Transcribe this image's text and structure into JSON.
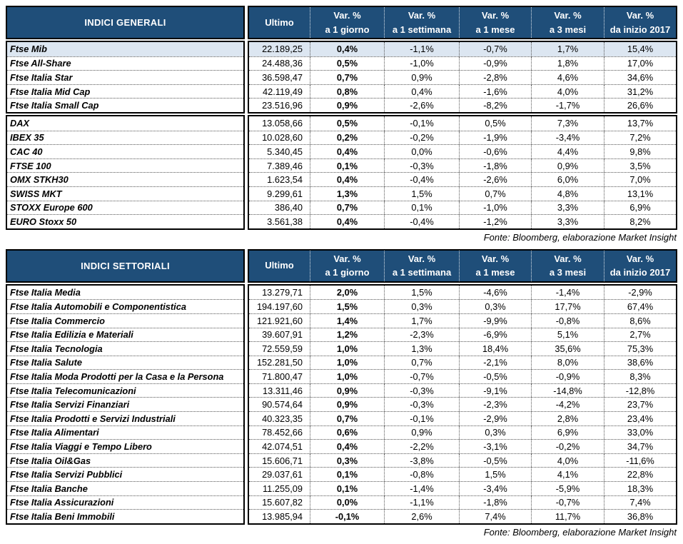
{
  "page": {
    "source_note": "Fonte: Bloomberg, elaborazione Market Insight"
  },
  "colors": {
    "header_bg": "#1F4E79",
    "header_text": "#FFFFFF",
    "highlight_row_bg": "#DCE6F1",
    "border": "#000000"
  },
  "columns": {
    "ultimo": "Ultimo",
    "var": [
      {
        "line1": "Var. %",
        "line2": "a 1 giorno"
      },
      {
        "line1": "Var. %",
        "line2": "a 1 settimana"
      },
      {
        "line1": "Var. %",
        "line2": "a 1 mese"
      },
      {
        "line1": "Var. %",
        "line2": "a 3 mesi"
      },
      {
        "line1": "Var. %",
        "line2": "da inizio 2017"
      }
    ]
  },
  "tables": [
    {
      "title": "INDICI GENERALI",
      "blocks": [
        {
          "highlight": [
            0
          ],
          "rows": [
            [
              "Ftse Mib",
              "22.189,25",
              "0,4%",
              "-1,1%",
              "-0,7%",
              "1,7%",
              "15,4%"
            ],
            [
              "Ftse All-Share",
              "24.488,36",
              "0,5%",
              "-1,0%",
              "-0,9%",
              "1,8%",
              "17,0%"
            ],
            [
              "Ftse Italia Star",
              "36.598,47",
              "0,7%",
              "0,9%",
              "-2,8%",
              "4,6%",
              "34,6%"
            ],
            [
              "Ftse Italia Mid Cap",
              "42.119,49",
              "0,8%",
              "0,4%",
              "-1,6%",
              "4,0%",
              "31,2%"
            ],
            [
              "Ftse Italia Small Cap",
              "23.516,96",
              "0,9%",
              "-2,6%",
              "-8,2%",
              "-1,7%",
              "26,6%"
            ]
          ]
        },
        {
          "highlight": [],
          "rows": [
            [
              "DAX",
              "13.058,66",
              "0,5%",
              "-0,1%",
              "0,5%",
              "7,3%",
              "13,7%"
            ],
            [
              "IBEX 35",
              "10.028,60",
              "0,2%",
              "-0,2%",
              "-1,9%",
              "-3,4%",
              "7,2%"
            ],
            [
              "CAC 40",
              "5.340,45",
              "0,4%",
              "0,0%",
              "-0,6%",
              "4,4%",
              "9,8%"
            ],
            [
              "FTSE 100",
              "7.389,46",
              "0,1%",
              "-0,3%",
              "-1,8%",
              "0,9%",
              "3,5%"
            ],
            [
              "OMX STKH30",
              "1.623,54",
              "0,4%",
              "-0,4%",
              "-2,6%",
              "6,0%",
              "7,0%"
            ],
            [
              "SWISS MKT",
              "9.299,61",
              "1,3%",
              "1,5%",
              "0,7%",
              "4,8%",
              "13,1%"
            ],
            [
              "STOXX Europe 600",
              "386,40",
              "0,7%",
              "0,1%",
              "-1,0%",
              "3,3%",
              "6,9%"
            ],
            [
              "EURO Stoxx 50",
              "3.561,38",
              "0,4%",
              "-0,4%",
              "-1,2%",
              "3,3%",
              "8,2%"
            ]
          ]
        }
      ]
    },
    {
      "title": "INDICI SETTORIALI",
      "blocks": [
        {
          "highlight": [],
          "rows": [
            [
              "Ftse Italia Media",
              "13.279,71",
              "2,0%",
              "1,5%",
              "-4,6%",
              "-1,4%",
              "-2,9%"
            ],
            [
              "Ftse Italia Automobili e Componentistica",
              "194.197,60",
              "1,5%",
              "0,3%",
              "0,3%",
              "17,7%",
              "67,4%"
            ],
            [
              "Ftse Italia Commercio",
              "121.921,60",
              "1,4%",
              "1,7%",
              "-9,9%",
              "-0,8%",
              "8,6%"
            ],
            [
              "Ftse Italia Edilizia e Materiali",
              "39.607,91",
              "1,2%",
              "-2,3%",
              "-6,9%",
              "5,1%",
              "2,7%"
            ],
            [
              "Ftse Italia Tecnologia",
              "72.559,59",
              "1,0%",
              "1,3%",
              "18,4%",
              "35,6%",
              "75,3%"
            ],
            [
              "Ftse Italia Salute",
              "152.281,50",
              "1,0%",
              "0,7%",
              "-2,1%",
              "8,0%",
              "38,6%"
            ],
            [
              "Ftse Italia Moda Prodotti per la Casa e la Persona",
              "71.800,47",
              "1,0%",
              "-0,7%",
              "-0,5%",
              "-0,9%",
              "8,3%"
            ],
            [
              "Ftse Italia Telecomunicazioni",
              "13.311,46",
              "0,9%",
              "-0,3%",
              "-9,1%",
              "-14,8%",
              "-12,8%"
            ],
            [
              "Ftse Italia Servizi Finanziari",
              "90.574,64",
              "0,9%",
              "-0,3%",
              "-2,3%",
              "-4,2%",
              "23,7%"
            ],
            [
              "Ftse Italia Prodotti e Servizi Industriali",
              "40.323,35",
              "0,7%",
              "-0,1%",
              "-2,9%",
              "2,8%",
              "23,4%"
            ],
            [
              "Ftse Italia Alimentari",
              "78.452,66",
              "0,6%",
              "0,9%",
              "0,3%",
              "6,9%",
              "33,0%"
            ],
            [
              "Ftse Italia Viaggi e Tempo Libero",
              "42.074,51",
              "0,4%",
              "-2,2%",
              "-3,1%",
              "-0,2%",
              "34,7%"
            ],
            [
              "Ftse Italia Oil&Gas",
              "15.606,71",
              "0,3%",
              "-3,8%",
              "-0,5%",
              "4,0%",
              "-11,6%"
            ],
            [
              "Ftse Italia Servizi Pubblici",
              "29.037,61",
              "0,1%",
              "-0,8%",
              "1,5%",
              "4,1%",
              "22,8%"
            ],
            [
              "Ftse Italia Banche",
              "11.255,09",
              "0,1%",
              "-1,4%",
              "-3,4%",
              "-5,9%",
              "18,3%"
            ],
            [
              "Ftse Italia Assicurazioni",
              "15.607,82",
              "0,0%",
              "-1,1%",
              "-1,8%",
              "-0,7%",
              "7,4%"
            ],
            [
              "Ftse Italia Beni Immobili",
              "13.985,94",
              "-0,1%",
              "2,6%",
              "7,4%",
              "11,7%",
              "36,8%"
            ]
          ]
        }
      ]
    }
  ]
}
